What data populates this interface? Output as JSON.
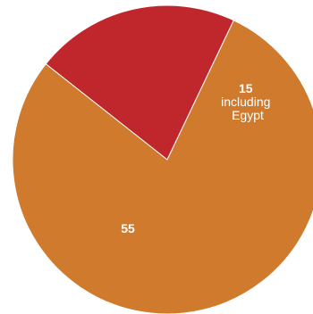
{
  "chart_data": {
    "type": "pie",
    "slices": [
      {
        "value": 15,
        "label": "15",
        "description": "including Egypt",
        "color": "#c0272d"
      },
      {
        "value": 55,
        "label": "55",
        "description": "",
        "color": "#cf7a2d"
      }
    ]
  }
}
